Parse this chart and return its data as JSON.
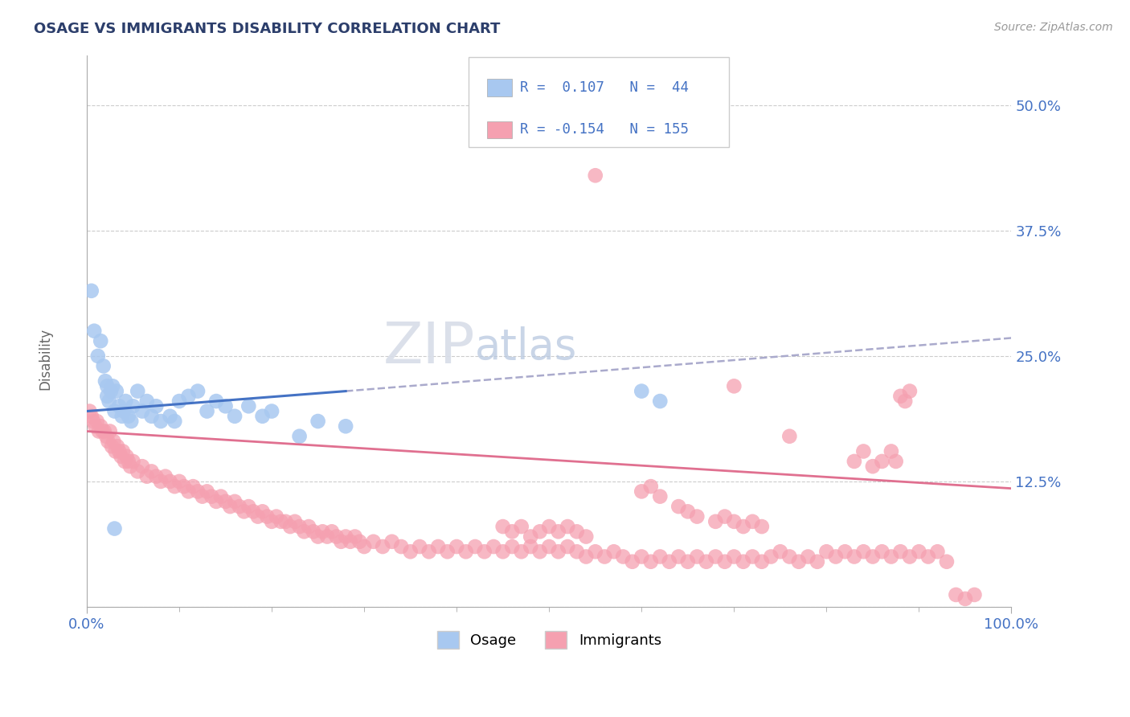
{
  "title": "OSAGE VS IMMIGRANTS DISABILITY CORRELATION CHART",
  "source_text": "Source: ZipAtlas.com",
  "ylabel": "Disability",
  "xlim": [
    0.0,
    1.0
  ],
  "ylim": [
    0.0,
    0.55
  ],
  "yticks": [
    0.0,
    0.125,
    0.25,
    0.375,
    0.5
  ],
  "ytick_labels": [
    "",
    "12.5%",
    "25.0%",
    "37.5%",
    "50.0%"
  ],
  "xtick_labels": [
    "0.0%",
    "100.0%"
  ],
  "osage_color": "#a8c8f0",
  "immigrants_color": "#f5a0b0",
  "osage_line_color": "#4472c4",
  "immigrants_line_color": "#e07090",
  "trend_line_color": "#aaaacc",
  "background_color": "#ffffff",
  "grid_color": "#cccccc",
  "title_color": "#2c3e6b",
  "tick_label_color": "#4472c4",
  "osage_line": [
    [
      0.0,
      0.195
    ],
    [
      0.28,
      0.215
    ]
  ],
  "trend_dashed_line": [
    [
      0.28,
      0.215
    ],
    [
      1.0,
      0.268
    ]
  ],
  "immigrants_line": [
    [
      0.0,
      0.175
    ],
    [
      1.0,
      0.118
    ]
  ],
  "osage_points": [
    [
      0.005,
      0.315
    ],
    [
      0.008,
      0.275
    ],
    [
      0.012,
      0.25
    ],
    [
      0.015,
      0.265
    ],
    [
      0.018,
      0.24
    ],
    [
      0.02,
      0.225
    ],
    [
      0.022,
      0.22
    ],
    [
      0.024,
      0.205
    ],
    [
      0.026,
      0.215
    ],
    [
      0.028,
      0.22
    ],
    [
      0.03,
      0.195
    ],
    [
      0.032,
      0.215
    ],
    [
      0.035,
      0.2
    ],
    [
      0.038,
      0.19
    ],
    [
      0.04,
      0.195
    ],
    [
      0.042,
      0.205
    ],
    [
      0.045,
      0.19
    ],
    [
      0.048,
      0.185
    ],
    [
      0.05,
      0.2
    ],
    [
      0.055,
      0.215
    ],
    [
      0.06,
      0.195
    ],
    [
      0.065,
      0.205
    ],
    [
      0.07,
      0.19
    ],
    [
      0.075,
      0.2
    ],
    [
      0.08,
      0.185
    ],
    [
      0.09,
      0.19
    ],
    [
      0.095,
      0.185
    ],
    [
      0.1,
      0.205
    ],
    [
      0.11,
      0.21
    ],
    [
      0.12,
      0.215
    ],
    [
      0.13,
      0.195
    ],
    [
      0.14,
      0.205
    ],
    [
      0.15,
      0.2
    ],
    [
      0.16,
      0.19
    ],
    [
      0.175,
      0.2
    ],
    [
      0.19,
      0.19
    ],
    [
      0.2,
      0.195
    ],
    [
      0.23,
      0.17
    ],
    [
      0.25,
      0.185
    ],
    [
      0.28,
      0.18
    ],
    [
      0.03,
      0.078
    ],
    [
      0.6,
      0.215
    ],
    [
      0.62,
      0.205
    ],
    [
      0.022,
      0.21
    ]
  ],
  "immigrants_points": [
    [
      0.003,
      0.195
    ],
    [
      0.005,
      0.19
    ],
    [
      0.007,
      0.185
    ],
    [
      0.009,
      0.18
    ],
    [
      0.011,
      0.185
    ],
    [
      0.013,
      0.175
    ],
    [
      0.015,
      0.18
    ],
    [
      0.017,
      0.175
    ],
    [
      0.019,
      0.175
    ],
    [
      0.021,
      0.17
    ],
    [
      0.023,
      0.165
    ],
    [
      0.025,
      0.175
    ],
    [
      0.027,
      0.16
    ],
    [
      0.029,
      0.165
    ],
    [
      0.031,
      0.155
    ],
    [
      0.033,
      0.16
    ],
    [
      0.035,
      0.155
    ],
    [
      0.037,
      0.15
    ],
    [
      0.039,
      0.155
    ],
    [
      0.041,
      0.145
    ],
    [
      0.043,
      0.15
    ],
    [
      0.045,
      0.145
    ],
    [
      0.047,
      0.14
    ],
    [
      0.05,
      0.145
    ],
    [
      0.055,
      0.135
    ],
    [
      0.06,
      0.14
    ],
    [
      0.065,
      0.13
    ],
    [
      0.07,
      0.135
    ],
    [
      0.075,
      0.13
    ],
    [
      0.08,
      0.125
    ],
    [
      0.085,
      0.13
    ],
    [
      0.09,
      0.125
    ],
    [
      0.095,
      0.12
    ],
    [
      0.1,
      0.125
    ],
    [
      0.105,
      0.12
    ],
    [
      0.11,
      0.115
    ],
    [
      0.115,
      0.12
    ],
    [
      0.12,
      0.115
    ],
    [
      0.125,
      0.11
    ],
    [
      0.13,
      0.115
    ],
    [
      0.135,
      0.11
    ],
    [
      0.14,
      0.105
    ],
    [
      0.145,
      0.11
    ],
    [
      0.15,
      0.105
    ],
    [
      0.155,
      0.1
    ],
    [
      0.16,
      0.105
    ],
    [
      0.165,
      0.1
    ],
    [
      0.17,
      0.095
    ],
    [
      0.175,
      0.1
    ],
    [
      0.18,
      0.095
    ],
    [
      0.185,
      0.09
    ],
    [
      0.19,
      0.095
    ],
    [
      0.195,
      0.09
    ],
    [
      0.2,
      0.085
    ],
    [
      0.205,
      0.09
    ],
    [
      0.21,
      0.085
    ],
    [
      0.215,
      0.085
    ],
    [
      0.22,
      0.08
    ],
    [
      0.225,
      0.085
    ],
    [
      0.23,
      0.08
    ],
    [
      0.235,
      0.075
    ],
    [
      0.24,
      0.08
    ],
    [
      0.245,
      0.075
    ],
    [
      0.25,
      0.07
    ],
    [
      0.255,
      0.075
    ],
    [
      0.26,
      0.07
    ],
    [
      0.265,
      0.075
    ],
    [
      0.27,
      0.07
    ],
    [
      0.275,
      0.065
    ],
    [
      0.28,
      0.07
    ],
    [
      0.285,
      0.065
    ],
    [
      0.29,
      0.07
    ],
    [
      0.295,
      0.065
    ],
    [
      0.3,
      0.06
    ],
    [
      0.31,
      0.065
    ],
    [
      0.32,
      0.06
    ],
    [
      0.33,
      0.065
    ],
    [
      0.34,
      0.06
    ],
    [
      0.35,
      0.055
    ],
    [
      0.36,
      0.06
    ],
    [
      0.37,
      0.055
    ],
    [
      0.38,
      0.06
    ],
    [
      0.39,
      0.055
    ],
    [
      0.4,
      0.06
    ],
    [
      0.41,
      0.055
    ],
    [
      0.42,
      0.06
    ],
    [
      0.43,
      0.055
    ],
    [
      0.44,
      0.06
    ],
    [
      0.45,
      0.055
    ],
    [
      0.46,
      0.06
    ],
    [
      0.47,
      0.055
    ],
    [
      0.48,
      0.06
    ],
    [
      0.49,
      0.055
    ],
    [
      0.5,
      0.06
    ],
    [
      0.51,
      0.055
    ],
    [
      0.52,
      0.06
    ],
    [
      0.53,
      0.055
    ],
    [
      0.54,
      0.05
    ],
    [
      0.55,
      0.055
    ],
    [
      0.56,
      0.05
    ],
    [
      0.57,
      0.055
    ],
    [
      0.58,
      0.05
    ],
    [
      0.59,
      0.045
    ],
    [
      0.6,
      0.05
    ],
    [
      0.61,
      0.045
    ],
    [
      0.62,
      0.05
    ],
    [
      0.63,
      0.045
    ],
    [
      0.64,
      0.05
    ],
    [
      0.65,
      0.045
    ],
    [
      0.66,
      0.05
    ],
    [
      0.67,
      0.045
    ],
    [
      0.68,
      0.05
    ],
    [
      0.69,
      0.045
    ],
    [
      0.7,
      0.05
    ],
    [
      0.71,
      0.045
    ],
    [
      0.72,
      0.05
    ],
    [
      0.73,
      0.045
    ],
    [
      0.74,
      0.05
    ],
    [
      0.75,
      0.055
    ],
    [
      0.76,
      0.05
    ],
    [
      0.77,
      0.045
    ],
    [
      0.78,
      0.05
    ],
    [
      0.79,
      0.045
    ],
    [
      0.8,
      0.055
    ],
    [
      0.81,
      0.05
    ],
    [
      0.82,
      0.055
    ],
    [
      0.83,
      0.05
    ],
    [
      0.84,
      0.055
    ],
    [
      0.85,
      0.05
    ],
    [
      0.86,
      0.055
    ],
    [
      0.87,
      0.05
    ],
    [
      0.88,
      0.055
    ],
    [
      0.89,
      0.05
    ],
    [
      0.9,
      0.055
    ],
    [
      0.91,
      0.05
    ],
    [
      0.92,
      0.055
    ],
    [
      0.93,
      0.045
    ],
    [
      0.94,
      0.012
    ],
    [
      0.95,
      0.008
    ],
    [
      0.96,
      0.012
    ],
    [
      0.55,
      0.43
    ],
    [
      0.7,
      0.22
    ],
    [
      0.76,
      0.17
    ],
    [
      0.83,
      0.145
    ],
    [
      0.84,
      0.155
    ],
    [
      0.85,
      0.14
    ],
    [
      0.86,
      0.145
    ],
    [
      0.87,
      0.155
    ],
    [
      0.875,
      0.145
    ],
    [
      0.88,
      0.21
    ],
    [
      0.885,
      0.205
    ],
    [
      0.89,
      0.215
    ],
    [
      0.6,
      0.115
    ],
    [
      0.61,
      0.12
    ],
    [
      0.62,
      0.11
    ],
    [
      0.64,
      0.1
    ],
    [
      0.65,
      0.095
    ],
    [
      0.66,
      0.09
    ],
    [
      0.68,
      0.085
    ],
    [
      0.69,
      0.09
    ],
    [
      0.7,
      0.085
    ],
    [
      0.71,
      0.08
    ],
    [
      0.72,
      0.085
    ],
    [
      0.73,
      0.08
    ],
    [
      0.45,
      0.08
    ],
    [
      0.46,
      0.075
    ],
    [
      0.47,
      0.08
    ],
    [
      0.48,
      0.07
    ],
    [
      0.49,
      0.075
    ],
    [
      0.5,
      0.08
    ],
    [
      0.51,
      0.075
    ],
    [
      0.52,
      0.08
    ],
    [
      0.53,
      0.075
    ],
    [
      0.54,
      0.07
    ]
  ]
}
